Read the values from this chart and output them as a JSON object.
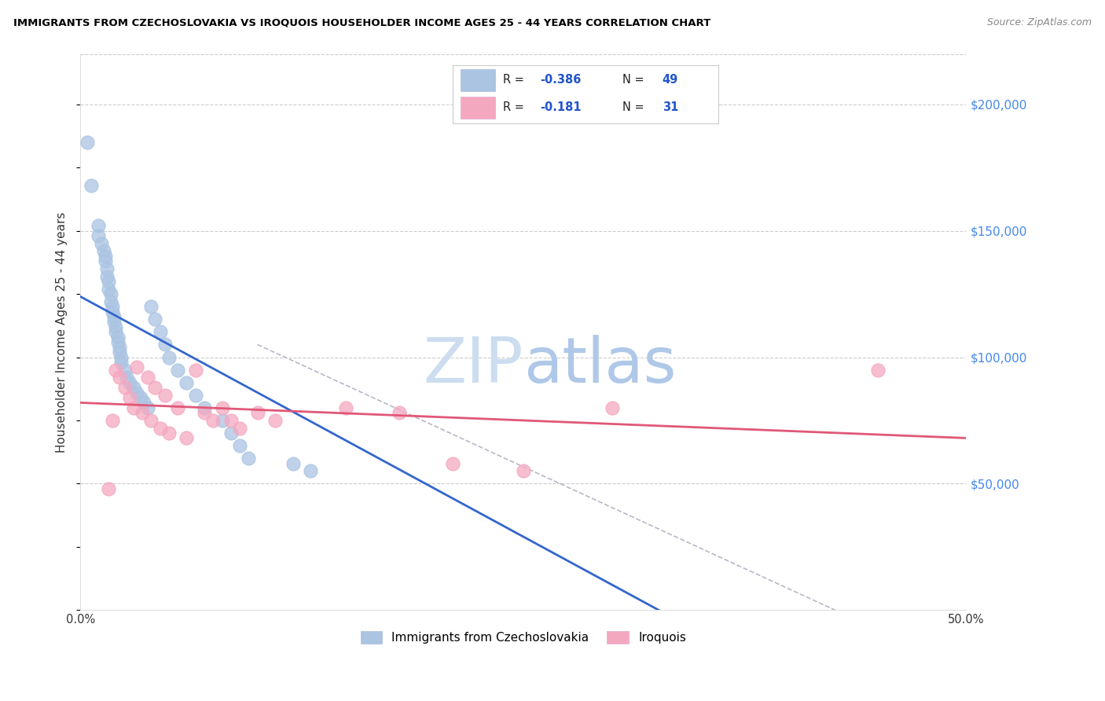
{
  "title": "IMMIGRANTS FROM CZECHOSLOVAKIA VS IROQUOIS HOUSEHOLDER INCOME AGES 25 - 44 YEARS CORRELATION CHART",
  "source": "Source: ZipAtlas.com",
  "ylabel": "Householder Income Ages 25 - 44 years",
  "xmin": 0.0,
  "xmax": 0.5,
  "ymin": 0,
  "ymax": 220000,
  "yticks": [
    0,
    50000,
    100000,
    150000,
    200000
  ],
  "ytick_labels": [
    "",
    "$50,000",
    "$100,000",
    "$150,000",
    "$200,000"
  ],
  "xticks": [
    0.0,
    0.1,
    0.2,
    0.3,
    0.4,
    0.5
  ],
  "xtick_labels": [
    "0.0%",
    "",
    "",
    "",
    "",
    "50.0%"
  ],
  "legend_r_blue": "-0.386",
  "legend_n_blue": "49",
  "legend_r_pink": "-0.181",
  "legend_n_pink": "31",
  "blue_color": "#aac4e2",
  "pink_color": "#f4a8c0",
  "blue_line_color": "#3366cc",
  "pink_line_color": "#e05878",
  "gray_dash_color": "#b8b8c8",
  "blue_scatter": [
    [
      0.004,
      185000
    ],
    [
      0.006,
      168000
    ],
    [
      0.01,
      152000
    ],
    [
      0.01,
      148000
    ],
    [
      0.012,
      145000
    ],
    [
      0.013,
      142000
    ],
    [
      0.014,
      140000
    ],
    [
      0.014,
      138000
    ],
    [
      0.015,
      135000
    ],
    [
      0.015,
      132000
    ],
    [
      0.016,
      130000
    ],
    [
      0.016,
      127000
    ],
    [
      0.017,
      125000
    ],
    [
      0.017,
      122000
    ],
    [
      0.018,
      120000
    ],
    [
      0.018,
      118000
    ],
    [
      0.019,
      116000
    ],
    [
      0.019,
      114000
    ],
    [
      0.02,
      112000
    ],
    [
      0.02,
      110000
    ],
    [
      0.021,
      108000
    ],
    [
      0.021,
      106000
    ],
    [
      0.022,
      104000
    ],
    [
      0.022,
      102000
    ],
    [
      0.023,
      100000
    ],
    [
      0.023,
      98000
    ],
    [
      0.025,
      95000
    ],
    [
      0.026,
      92000
    ],
    [
      0.028,
      90000
    ],
    [
      0.03,
      88000
    ],
    [
      0.032,
      86000
    ],
    [
      0.034,
      84000
    ],
    [
      0.036,
      82000
    ],
    [
      0.038,
      80000
    ],
    [
      0.04,
      120000
    ],
    [
      0.042,
      115000
    ],
    [
      0.045,
      110000
    ],
    [
      0.048,
      105000
    ],
    [
      0.05,
      100000
    ],
    [
      0.055,
      95000
    ],
    [
      0.06,
      90000
    ],
    [
      0.065,
      85000
    ],
    [
      0.07,
      80000
    ],
    [
      0.08,
      75000
    ],
    [
      0.085,
      70000
    ],
    [
      0.09,
      65000
    ],
    [
      0.095,
      60000
    ],
    [
      0.12,
      58000
    ],
    [
      0.13,
      55000
    ]
  ],
  "pink_scatter": [
    [
      0.016,
      48000
    ],
    [
      0.018,
      75000
    ],
    [
      0.02,
      95000
    ],
    [
      0.022,
      92000
    ],
    [
      0.025,
      88000
    ],
    [
      0.028,
      84000
    ],
    [
      0.03,
      80000
    ],
    [
      0.032,
      96000
    ],
    [
      0.035,
      78000
    ],
    [
      0.038,
      92000
    ],
    [
      0.04,
      75000
    ],
    [
      0.042,
      88000
    ],
    [
      0.045,
      72000
    ],
    [
      0.048,
      85000
    ],
    [
      0.05,
      70000
    ],
    [
      0.055,
      80000
    ],
    [
      0.06,
      68000
    ],
    [
      0.065,
      95000
    ],
    [
      0.07,
      78000
    ],
    [
      0.075,
      75000
    ],
    [
      0.08,
      80000
    ],
    [
      0.085,
      75000
    ],
    [
      0.09,
      72000
    ],
    [
      0.1,
      78000
    ],
    [
      0.11,
      75000
    ],
    [
      0.15,
      80000
    ],
    [
      0.18,
      78000
    ],
    [
      0.21,
      58000
    ],
    [
      0.25,
      55000
    ],
    [
      0.3,
      80000
    ],
    [
      0.45,
      95000
    ]
  ]
}
